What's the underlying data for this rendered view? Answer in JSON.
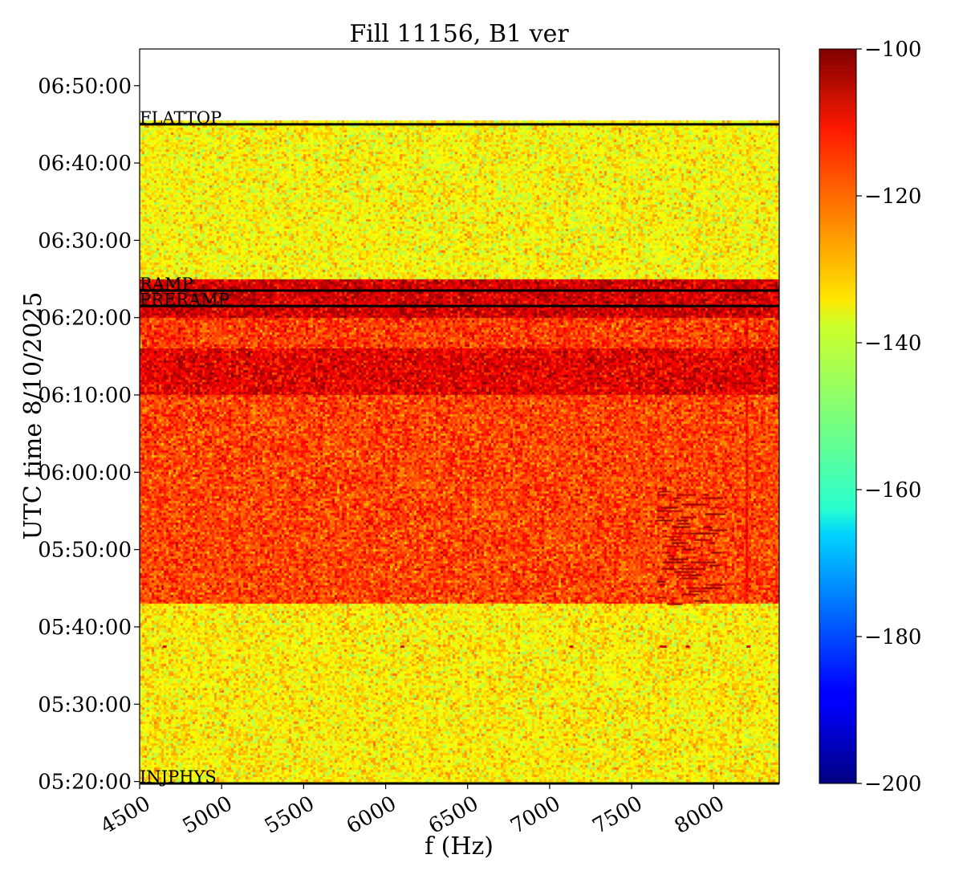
{
  "chart_data": {
    "type": "heatmap",
    "title": "Fill 11156, B1 ver",
    "xlabel": "f (Hz)",
    "ylabel": "UTC time 8/10/2025",
    "xlim": [
      4500,
      8400
    ],
    "ylim": [
      "05:19:45",
      "06:54:45"
    ],
    "x_ticks": [
      4500,
      5000,
      5500,
      6000,
      6500,
      7000,
      7500,
      8000
    ],
    "x_tick_labels": [
      "4500",
      "5000",
      "5500",
      "6000",
      "6500",
      "7000",
      "7500",
      "8000"
    ],
    "y_ticks": [
      "05:20:00",
      "05:30:00",
      "05:40:00",
      "05:50:00",
      "06:00:00",
      "06:10:00",
      "06:20:00",
      "06:30:00",
      "06:40:00",
      "06:50:00"
    ],
    "colorbar": {
      "colormap": "jet",
      "range": [
        -200,
        -100
      ],
      "ticks": [
        -100,
        -120,
        -140,
        -160,
        -180,
        -200
      ],
      "tick_labels": [
        "−100",
        "−120",
        "−140",
        "−160",
        "−180",
        "−200"
      ]
    },
    "data_time_range": [
      "05:19:45",
      "06:45:30"
    ],
    "bands": [
      {
        "start": "05:19:45",
        "end": "05:43:00",
        "level": -136
      },
      {
        "start": "05:43:00",
        "end": "06:10:00",
        "level": -119
      },
      {
        "start": "06:10:00",
        "end": "06:16:00",
        "level": -110
      },
      {
        "start": "06:16:00",
        "end": "06:20:00",
        "level": -118
      },
      {
        "start": "06:20:00",
        "end": "06:25:00",
        "level": -108
      },
      {
        "start": "06:25:00",
        "end": "06:45:30",
        "level": -137
      }
    ],
    "markers": [
      {
        "label": "FLATTOP",
        "time": "06:45:00"
      },
      {
        "label": "RAMP",
        "time": "06:23:30"
      },
      {
        "label": "PRERAMP",
        "time": "06:21:30"
      },
      {
        "label": "INJPHYS",
        "time": "05:19:45"
      }
    ],
    "features": [
      {
        "kind": "vertical_line",
        "freq": 8200,
        "start": "05:43:00",
        "end": "06:21:00",
        "level": -112
      },
      {
        "kind": "dashes",
        "freq_range": [
          7650,
          8050
        ],
        "start": "05:43:00",
        "end": "05:58:00",
        "level": -103
      },
      {
        "kind": "dots",
        "time": "05:37:30",
        "freqs": [
          4650,
          6100,
          7130,
          7680,
          7700,
          7840,
          8210
        ],
        "level": -108
      }
    ]
  }
}
